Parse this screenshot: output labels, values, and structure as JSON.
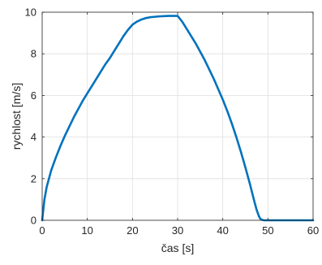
{
  "chart_data": {
    "type": "line",
    "title": "",
    "xlabel": "čas [s]",
    "ylabel": "rychlost [m/s]",
    "xlim": [
      0,
      60
    ],
    "ylim": [
      0,
      10
    ],
    "xticks": [
      0,
      10,
      20,
      30,
      40,
      50,
      60
    ],
    "yticks": [
      0,
      2,
      4,
      6,
      8,
      10
    ],
    "xtick_labels": [
      "0",
      "10",
      "20",
      "30",
      "40",
      "50",
      "60"
    ],
    "ytick_labels": [
      "0",
      "2",
      "4",
      "6",
      "8",
      "10"
    ],
    "grid": true,
    "legend": "none",
    "series": [
      {
        "color": "#0072BD",
        "x": [
          0,
          0.5,
          1,
          2,
          3,
          4,
          5,
          6,
          7,
          8,
          9,
          10,
          11,
          12,
          13,
          14,
          15,
          16,
          17,
          18,
          19,
          20,
          21,
          22,
          23,
          24,
          25,
          26,
          27,
          28,
          29,
          30,
          31,
          32,
          33,
          34,
          35,
          36,
          37,
          38,
          39,
          40,
          41,
          42,
          43,
          44,
          45,
          46,
          47,
          47.5,
          48,
          48.3,
          48.6,
          48.9,
          49.2,
          49.5,
          50,
          52,
          55,
          60
        ],
        "y": [
          0,
          1.0,
          1.6,
          2.4,
          3.0,
          3.55,
          4.05,
          4.5,
          4.95,
          5.35,
          5.75,
          6.1,
          6.45,
          6.8,
          7.15,
          7.5,
          7.8,
          8.15,
          8.5,
          8.85,
          9.15,
          9.4,
          9.55,
          9.65,
          9.72,
          9.76,
          9.78,
          9.8,
          9.81,
          9.82,
          9.82,
          9.82,
          9.55,
          9.2,
          8.85,
          8.5,
          8.1,
          7.7,
          7.25,
          6.8,
          6.3,
          5.8,
          5.25,
          4.65,
          4.0,
          3.3,
          2.55,
          1.75,
          0.9,
          0.5,
          0.2,
          0.08,
          0.03,
          0.01,
          0.0,
          0.0,
          0.0,
          0.0,
          0.0,
          0.0
        ]
      }
    ]
  }
}
